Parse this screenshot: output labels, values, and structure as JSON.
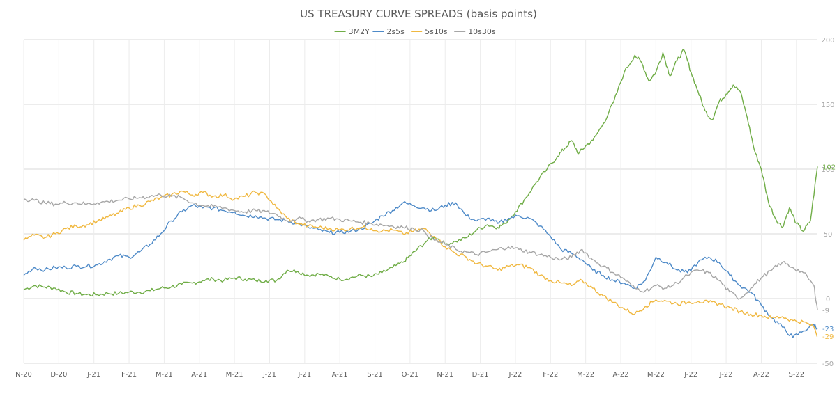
{
  "chart_data": {
    "type": "line",
    "title": "US TREASURY CURVE SPREADS (basis points)",
    "xlabel": "",
    "ylabel": "",
    "x_tick_labels": [
      "N-20",
      "D-20",
      "J-21",
      "F-21",
      "M-21",
      "A-21",
      "M-21",
      "J-21",
      "J-21",
      "A-21",
      "S-21",
      "O-21",
      "N-21",
      "D-21",
      "J-22",
      "F-22",
      "M-22",
      "A-22",
      "M-22",
      "J-22",
      "J-22",
      "A-22",
      "S-22"
    ],
    "x_range": [
      0,
      22.6
    ],
    "y_ticks": [
      200,
      150,
      100,
      50,
      0,
      -50
    ],
    "ylim": [
      -50,
      200
    ],
    "grid": true,
    "legend_position": "top-center",
    "series": [
      {
        "name": "3M2Y",
        "color": "#70ad47",
        "end_label": "102",
        "points": [
          [
            0,
            7
          ],
          [
            0.3,
            10
          ],
          [
            0.6,
            9
          ],
          [
            0.9,
            8
          ],
          [
            1.2,
            5
          ],
          [
            1.5,
            4
          ],
          [
            1.8,
            3
          ],
          [
            2.1,
            3
          ],
          [
            2.4,
            4
          ],
          [
            2.7,
            4
          ],
          [
            3,
            5
          ],
          [
            3.3,
            5
          ],
          [
            3.6,
            6
          ],
          [
            3.9,
            8
          ],
          [
            4.2,
            9
          ],
          [
            4.5,
            11
          ],
          [
            4.8,
            12
          ],
          [
            5.1,
            14
          ],
          [
            5.4,
            15
          ],
          [
            5.7,
            14
          ],
          [
            6,
            16
          ],
          [
            6.3,
            15
          ],
          [
            6.6,
            14
          ],
          [
            6.9,
            14
          ],
          [
            7.2,
            14
          ],
          [
            7.5,
            22
          ],
          [
            7.8,
            21
          ],
          [
            8.1,
            18
          ],
          [
            8.4,
            19
          ],
          [
            8.7,
            17
          ],
          [
            9,
            15
          ],
          [
            9.3,
            16
          ],
          [
            9.6,
            18
          ],
          [
            9.9,
            17
          ],
          [
            10.2,
            20
          ],
          [
            10.5,
            24
          ],
          [
            10.8,
            28
          ],
          [
            11,
            33
          ],
          [
            11.2,
            38
          ],
          [
            11.5,
            45
          ],
          [
            11.7,
            48
          ],
          [
            12,
            42
          ],
          [
            12.3,
            44
          ],
          [
            12.6,
            47
          ],
          [
            12.9,
            53
          ],
          [
            13.2,
            57
          ],
          [
            13.5,
            55
          ],
          [
            13.7,
            58
          ],
          [
            14,
            67
          ],
          [
            14.3,
            78
          ],
          [
            14.6,
            90
          ],
          [
            14.9,
            100
          ],
          [
            15.2,
            110
          ],
          [
            15.4,
            116
          ],
          [
            15.6,
            122
          ],
          [
            15.8,
            112
          ],
          [
            16,
            118
          ],
          [
            16.2,
            122
          ],
          [
            16.5,
            135
          ],
          [
            16.8,
            152
          ],
          [
            17.1,
            175
          ],
          [
            17.4,
            188
          ],
          [
            17.6,
            182
          ],
          [
            17.8,
            168
          ],
          [
            18,
            175
          ],
          [
            18.2,
            190
          ],
          [
            18.4,
            172
          ],
          [
            18.6,
            184
          ],
          [
            18.8,
            192
          ],
          [
            19,
            175
          ],
          [
            19.2,
            160
          ],
          [
            19.4,
            145
          ],
          [
            19.6,
            138
          ],
          [
            19.8,
            152
          ],
          [
            20,
            158
          ],
          [
            20.2,
            165
          ],
          [
            20.4,
            160
          ],
          [
            20.6,
            140
          ],
          [
            20.8,
            115
          ],
          [
            21,
            100
          ],
          [
            21.2,
            75
          ],
          [
            21.4,
            62
          ],
          [
            21.6,
            55
          ],
          [
            21.8,
            70
          ],
          [
            22,
            58
          ],
          [
            22.2,
            52
          ],
          [
            22.4,
            60
          ],
          [
            22.6,
            102
          ]
        ]
      },
      {
        "name": "2s5s",
        "color": "#4e8ac8",
        "end_label": "-23",
        "points": [
          [
            0,
            18
          ],
          [
            0.3,
            24
          ],
          [
            0.6,
            22
          ],
          [
            0.9,
            24
          ],
          [
            1.2,
            24
          ],
          [
            1.5,
            25
          ],
          [
            1.8,
            25
          ],
          [
            2.1,
            26
          ],
          [
            2.4,
            30
          ],
          [
            2.7,
            33
          ],
          [
            3,
            32
          ],
          [
            3.3,
            36
          ],
          [
            3.6,
            42
          ],
          [
            3.9,
            50
          ],
          [
            4.2,
            60
          ],
          [
            4.5,
            67
          ],
          [
            4.8,
            72
          ],
          [
            5.1,
            70
          ],
          [
            5.4,
            70
          ],
          [
            5.7,
            68
          ],
          [
            6,
            67
          ],
          [
            6.3,
            64
          ],
          [
            6.6,
            64
          ],
          [
            6.9,
            62
          ],
          [
            7.2,
            61
          ],
          [
            7.5,
            60
          ],
          [
            7.8,
            58
          ],
          [
            8.1,
            55
          ],
          [
            8.4,
            53
          ],
          [
            8.7,
            51
          ],
          [
            9,
            51
          ],
          [
            9.3,
            52
          ],
          [
            9.6,
            54
          ],
          [
            9.9,
            58
          ],
          [
            10.2,
            64
          ],
          [
            10.5,
            68
          ],
          [
            10.8,
            74
          ],
          [
            11.1,
            72
          ],
          [
            11.4,
            70
          ],
          [
            11.7,
            68
          ],
          [
            12,
            72
          ],
          [
            12.3,
            74
          ],
          [
            12.6,
            64
          ],
          [
            12.9,
            60
          ],
          [
            13.2,
            62
          ],
          [
            13.5,
            58
          ],
          [
            13.8,
            62
          ],
          [
            14.1,
            64
          ],
          [
            14.4,
            62
          ],
          [
            14.7,
            56
          ],
          [
            15,
            48
          ],
          [
            15.3,
            38
          ],
          [
            15.6,
            35
          ],
          [
            15.9,
            30
          ],
          [
            16.2,
            22
          ],
          [
            16.5,
            18
          ],
          [
            16.8,
            14
          ],
          [
            17.1,
            12
          ],
          [
            17.4,
            8
          ],
          [
            17.7,
            14
          ],
          [
            18,
            32
          ],
          [
            18.3,
            28
          ],
          [
            18.6,
            22
          ],
          [
            18.9,
            20
          ],
          [
            19.2,
            28
          ],
          [
            19.5,
            32
          ],
          [
            19.8,
            28
          ],
          [
            20.1,
            18
          ],
          [
            20.4,
            10
          ],
          [
            20.7,
            5
          ],
          [
            21,
            -5
          ],
          [
            21.3,
            -15
          ],
          [
            21.6,
            -22
          ],
          [
            21.9,
            -30
          ],
          [
            22.2,
            -25
          ],
          [
            22.5,
            -20
          ],
          [
            22.6,
            -23
          ]
        ]
      },
      {
        "name": "5s10s",
        "color": "#f0b840",
        "end_label": "-29",
        "points": [
          [
            0,
            45
          ],
          [
            0.3,
            49
          ],
          [
            0.6,
            47
          ],
          [
            0.9,
            50
          ],
          [
            1.2,
            54
          ],
          [
            1.5,
            56
          ],
          [
            1.8,
            57
          ],
          [
            2.1,
            60
          ],
          [
            2.4,
            63
          ],
          [
            2.7,
            66
          ],
          [
            3,
            70
          ],
          [
            3.3,
            72
          ],
          [
            3.6,
            75
          ],
          [
            3.9,
            78
          ],
          [
            4.2,
            80
          ],
          [
            4.5,
            83
          ],
          [
            4.8,
            80
          ],
          [
            5.1,
            82
          ],
          [
            5.4,
            79
          ],
          [
            5.7,
            80
          ],
          [
            6,
            77
          ],
          [
            6.3,
            79
          ],
          [
            6.6,
            82
          ],
          [
            6.9,
            80
          ],
          [
            7.2,
            70
          ],
          [
            7.5,
            62
          ],
          [
            7.8,
            58
          ],
          [
            8.1,
            56
          ],
          [
            8.4,
            55
          ],
          [
            8.7,
            54
          ],
          [
            9,
            53
          ],
          [
            9.3,
            54
          ],
          [
            9.6,
            55
          ],
          [
            9.9,
            54
          ],
          [
            10.2,
            52
          ],
          [
            10.5,
            53
          ],
          [
            10.8,
            50
          ],
          [
            11.1,
            52
          ],
          [
            11.4,
            54
          ],
          [
            11.7,
            48
          ],
          [
            12,
            40
          ],
          [
            12.3,
            35
          ],
          [
            12.6,
            32
          ],
          [
            12.9,
            27
          ],
          [
            13.2,
            25
          ],
          [
            13.5,
            22
          ],
          [
            13.8,
            25
          ],
          [
            14.1,
            26
          ],
          [
            14.4,
            24
          ],
          [
            14.7,
            18
          ],
          [
            15,
            14
          ],
          [
            15.3,
            12
          ],
          [
            15.6,
            10
          ],
          [
            15.9,
            14
          ],
          [
            16.2,
            8
          ],
          [
            16.5,
            2
          ],
          [
            16.8,
            -3
          ],
          [
            17.1,
            -8
          ],
          [
            17.4,
            -12
          ],
          [
            17.7,
            -6
          ],
          [
            18,
            -1
          ],
          [
            18.3,
            -2
          ],
          [
            18.6,
            -4
          ],
          [
            18.9,
            -3
          ],
          [
            19.2,
            -2
          ],
          [
            19.5,
            -3
          ],
          [
            19.8,
            -4
          ],
          [
            20.1,
            -7
          ],
          [
            20.4,
            -10
          ],
          [
            20.7,
            -12
          ],
          [
            21,
            -13
          ],
          [
            21.3,
            -15
          ],
          [
            21.6,
            -14
          ],
          [
            21.9,
            -17
          ],
          [
            22.2,
            -18
          ],
          [
            22.5,
            -22
          ],
          [
            22.6,
            -29
          ]
        ]
      },
      {
        "name": "10s30s",
        "color": "#a6a6a6",
        "end_label": "-9",
        "points": [
          [
            0,
            77
          ],
          [
            0.3,
            76
          ],
          [
            0.6,
            74
          ],
          [
            0.9,
            73
          ],
          [
            1.2,
            74
          ],
          [
            1.5,
            74
          ],
          [
            1.8,
            73
          ],
          [
            2.1,
            74
          ],
          [
            2.4,
            75
          ],
          [
            2.7,
            76
          ],
          [
            3,
            77
          ],
          [
            3.3,
            78
          ],
          [
            3.6,
            79
          ],
          [
            3.9,
            80
          ],
          [
            4.2,
            79
          ],
          [
            4.5,
            78
          ],
          [
            4.8,
            74
          ],
          [
            5.1,
            72
          ],
          [
            5.4,
            71
          ],
          [
            5.7,
            70
          ],
          [
            6,
            68
          ],
          [
            6.3,
            67
          ],
          [
            6.6,
            68
          ],
          [
            6.9,
            67
          ],
          [
            7.2,
            65
          ],
          [
            7.5,
            60
          ],
          [
            7.8,
            62
          ],
          [
            8.1,
            60
          ],
          [
            8.4,
            61
          ],
          [
            8.7,
            62
          ],
          [
            9,
            61
          ],
          [
            9.3,
            60
          ],
          [
            9.6,
            59
          ],
          [
            9.9,
            58
          ],
          [
            10.2,
            57
          ],
          [
            10.5,
            56
          ],
          [
            10.8,
            55
          ],
          [
            11.1,
            54
          ],
          [
            11.4,
            52
          ],
          [
            11.7,
            45
          ],
          [
            12,
            42
          ],
          [
            12.3,
            38
          ],
          [
            12.6,
            36
          ],
          [
            12.9,
            34
          ],
          [
            13.2,
            36
          ],
          [
            13.5,
            38
          ],
          [
            13.8,
            40
          ],
          [
            14.1,
            38
          ],
          [
            14.4,
            36
          ],
          [
            14.7,
            34
          ],
          [
            15,
            32
          ],
          [
            15.3,
            30
          ],
          [
            15.6,
            32
          ],
          [
            15.9,
            38
          ],
          [
            16.2,
            30
          ],
          [
            16.5,
            25
          ],
          [
            16.8,
            20
          ],
          [
            17.1,
            15
          ],
          [
            17.4,
            8
          ],
          [
            17.7,
            6
          ],
          [
            18,
            10
          ],
          [
            18.3,
            8
          ],
          [
            18.6,
            12
          ],
          [
            18.9,
            18
          ],
          [
            19.2,
            22
          ],
          [
            19.5,
            20
          ],
          [
            19.8,
            14
          ],
          [
            20.1,
            5
          ],
          [
            20.4,
            0
          ],
          [
            20.7,
            8
          ],
          [
            21,
            16
          ],
          [
            21.3,
            22
          ],
          [
            21.6,
            28
          ],
          [
            21.9,
            24
          ],
          [
            22.2,
            20
          ],
          [
            22.5,
            10
          ],
          [
            22.6,
            -9
          ]
        ]
      }
    ]
  }
}
